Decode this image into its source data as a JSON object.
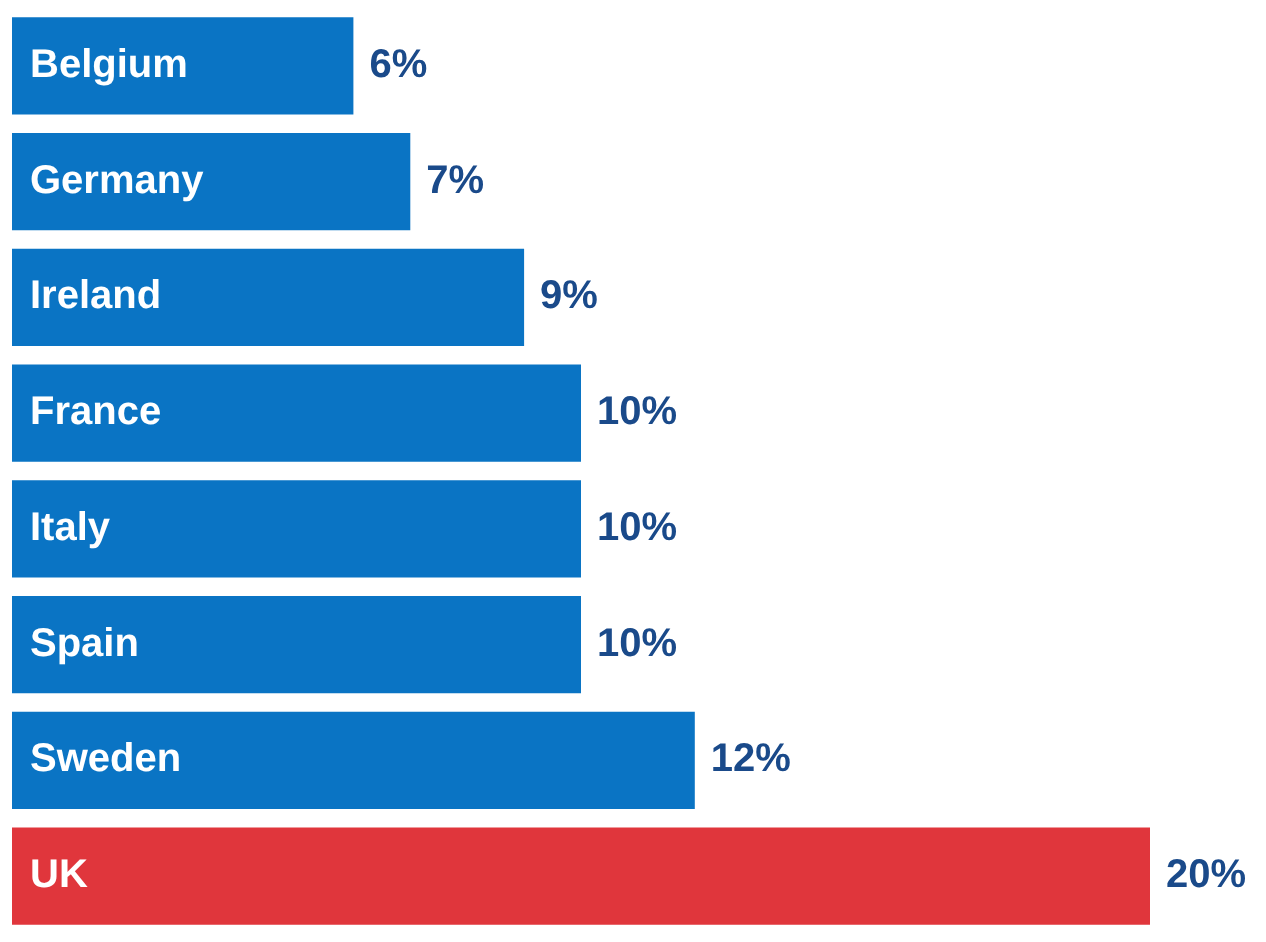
{
  "chart_data": {
    "type": "bar",
    "orientation": "horizontal",
    "categories": [
      "Belgium",
      "Germany",
      "Ireland",
      "France",
      "Italy",
      "Spain",
      "Sweden",
      "UK"
    ],
    "values": [
      6,
      7,
      9,
      10,
      10,
      10,
      12,
      20
    ],
    "colors": [
      "#0a74c4",
      "#0a74c4",
      "#0a74c4",
      "#0a74c4",
      "#0a74c4",
      "#0a74c4",
      "#0a74c4",
      "#e0363c"
    ],
    "value_labels": [
      "6%",
      "7%",
      "9%",
      "10%",
      "10%",
      "10%",
      "12%",
      "20%"
    ],
    "tick_labels": false
  }
}
